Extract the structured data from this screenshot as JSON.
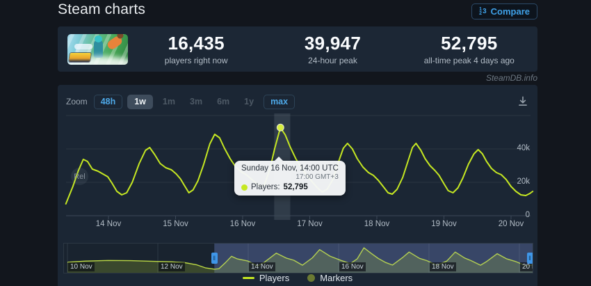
{
  "header": {
    "title": "Steam charts",
    "compare_label": "Compare"
  },
  "stats": {
    "items": [
      {
        "value": "16,435",
        "caption": "players right now"
      },
      {
        "value": "39,947",
        "caption": "24-hour peak"
      },
      {
        "value": "52,795",
        "caption": "all-time peak 4 days ago"
      }
    ]
  },
  "watermark": "SteamDB.info",
  "toolbar": {
    "zoom_label": "Zoom",
    "buttons": [
      {
        "label": "48h",
        "state": "enabled"
      },
      {
        "label": "1w",
        "state": "selected"
      },
      {
        "label": "1m",
        "state": "disabled"
      },
      {
        "label": "3m",
        "state": "disabled"
      },
      {
        "label": "6m",
        "state": "disabled"
      },
      {
        "label": "1y",
        "state": "disabled"
      },
      {
        "label": "max",
        "state": "enabled"
      }
    ]
  },
  "tooltip": {
    "title": "Sunday 16 Nov, 14:00 UTC",
    "subtitle": "17:00 GMT+3",
    "series_label": "Players:",
    "value": "52,795"
  },
  "legend": {
    "items": [
      {
        "label": "Players",
        "swatch": "line"
      },
      {
        "label": "Markers",
        "swatch": "circle"
      }
    ]
  },
  "chart_data": {
    "type": "line",
    "series_name": "Players",
    "series_color": "#c6e822",
    "ylim": [
      0,
      62000
    ],
    "y_ticks": [
      {
        "v": 0,
        "label": "0"
      },
      {
        "v": 20000,
        "label": "20k"
      },
      {
        "v": 40000,
        "label": "40k"
      },
      {
        "v": 60000,
        "label": ""
      }
    ],
    "x_ticks": [
      {
        "t": 1,
        "label": "14 Nov"
      },
      {
        "t": 2,
        "label": "15 Nov"
      },
      {
        "t": 3,
        "label": "16 Nov"
      },
      {
        "t": 4,
        "label": "17 Nov"
      },
      {
        "t": 5,
        "label": "18 Nov"
      },
      {
        "t": 6,
        "label": "19 Nov"
      },
      {
        "t": 7,
        "label": "20 Nov"
      }
    ],
    "hover_band_t": [
      3.47,
      3.71
    ],
    "marker_point": {
      "t": 3.563,
      "v": 52795
    },
    "release_marker": {
      "label": "Rel",
      "t": 0.6,
      "v": 40000
    },
    "points": [
      [
        0.365,
        7100
      ],
      [
        0.469,
        17500
      ],
      [
        0.552,
        27100
      ],
      [
        0.625,
        33750
      ],
      [
        0.688,
        32500
      ],
      [
        0.76,
        27900
      ],
      [
        0.844,
        26650
      ],
      [
        0.917,
        25000
      ],
      [
        0.99,
        23350
      ],
      [
        1.052,
        19600
      ],
      [
        1.125,
        14600
      ],
      [
        1.198,
        12500
      ],
      [
        1.271,
        13750
      ],
      [
        1.354,
        20000
      ],
      [
        1.458,
        31250
      ],
      [
        1.552,
        39150
      ],
      [
        1.615,
        40850
      ],
      [
        1.688,
        36650
      ],
      [
        1.771,
        31250
      ],
      [
        1.854,
        28750
      ],
      [
        1.938,
        27500
      ],
      [
        2.01,
        25000
      ],
      [
        2.073,
        22100
      ],
      [
        2.135,
        17900
      ],
      [
        2.198,
        13750
      ],
      [
        2.26,
        15400
      ],
      [
        2.333,
        20850
      ],
      [
        2.417,
        30400
      ],
      [
        2.51,
        42900
      ],
      [
        2.583,
        48750
      ],
      [
        2.656,
        46650
      ],
      [
        2.729,
        40400
      ],
      [
        2.813,
        34150
      ],
      [
        2.896,
        29150
      ],
      [
        2.979,
        26250
      ],
      [
        3.052,
        24600
      ],
      [
        3.125,
        22100
      ],
      [
        3.198,
        19600
      ],
      [
        3.26,
        17500
      ],
      [
        3.323,
        18350
      ],
      [
        3.406,
        27900
      ],
      [
        3.479,
        40400
      ],
      [
        3.563,
        52795
      ],
      [
        3.635,
        48350
      ],
      [
        3.708,
        41250
      ],
      [
        3.792,
        34150
      ],
      [
        3.875,
        28750
      ],
      [
        3.958,
        24150
      ],
      [
        4.042,
        20000
      ],
      [
        4.115,
        16650
      ],
      [
        4.188,
        14150
      ],
      [
        4.26,
        15850
      ],
      [
        4.344,
        21650
      ],
      [
        4.427,
        32100
      ],
      [
        4.5,
        40400
      ],
      [
        4.563,
        43350
      ],
      [
        4.635,
        40000
      ],
      [
        4.708,
        34150
      ],
      [
        4.792,
        29150
      ],
      [
        4.875,
        25850
      ],
      [
        4.948,
        24150
      ],
      [
        5.021,
        21250
      ],
      [
        5.094,
        17500
      ],
      [
        5.167,
        13750
      ],
      [
        5.229,
        12900
      ],
      [
        5.302,
        15850
      ],
      [
        5.385,
        22900
      ],
      [
        5.469,
        33350
      ],
      [
        5.531,
        40850
      ],
      [
        5.583,
        43350
      ],
      [
        5.656,
        39150
      ],
      [
        5.719,
        34150
      ],
      [
        5.792,
        30000
      ],
      [
        5.865,
        27100
      ],
      [
        5.927,
        24150
      ],
      [
        6.0,
        19150
      ],
      [
        6.063,
        15000
      ],
      [
        6.135,
        13750
      ],
      [
        6.208,
        16650
      ],
      [
        6.281,
        22500
      ],
      [
        6.365,
        30850
      ],
      [
        6.448,
        37100
      ],
      [
        6.51,
        39600
      ],
      [
        6.573,
        37100
      ],
      [
        6.635,
        32500
      ],
      [
        6.708,
        28350
      ],
      [
        6.781,
        25850
      ],
      [
        6.854,
        24600
      ],
      [
        6.927,
        21650
      ],
      [
        7.0,
        17500
      ],
      [
        7.073,
        14600
      ],
      [
        7.146,
        12500
      ],
      [
        7.219,
        12100
      ],
      [
        7.281,
        13350
      ],
      [
        7.323,
        14600
      ]
    ],
    "navigator": {
      "range": [
        -0.08,
        10.29
      ],
      "selection": [
        3.25,
        10.29
      ],
      "x_ticks": [
        {
          "t": 0,
          "label": "10 Nov"
        },
        {
          "t": 2,
          "label": "12 Nov"
        },
        {
          "t": 4,
          "label": "14 Nov"
        },
        {
          "t": 6,
          "label": "16 Nov"
        },
        {
          "t": 8,
          "label": "18 Nov"
        },
        {
          "t": 10,
          "label": "20 Nov"
        }
      ],
      "points": [
        [
          0,
          20500
        ],
        [
          0.4,
          23000
        ],
        [
          0.9,
          24500
        ],
        [
          1.4,
          24000
        ],
        [
          1.9,
          22500
        ],
        [
          2.3,
          21500
        ],
        [
          2.6,
          19500
        ],
        [
          2.85,
          15000
        ],
        [
          3.05,
          8000
        ],
        [
          3.25,
          5000
        ],
        [
          3.35,
          6000
        ],
        [
          3.5,
          20000
        ],
        [
          3.63,
          33800
        ],
        [
          3.76,
          27900
        ],
        [
          3.99,
          23300
        ],
        [
          4.2,
          12500
        ],
        [
          4.35,
          20000
        ],
        [
          4.62,
          40800
        ],
        [
          4.85,
          29500
        ],
        [
          5.01,
          25000
        ],
        [
          5.2,
          13800
        ],
        [
          5.42,
          30400
        ],
        [
          5.58,
          48800
        ],
        [
          5.81,
          34200
        ],
        [
          6.05,
          24600
        ],
        [
          6.26,
          17500
        ],
        [
          6.41,
          27900
        ],
        [
          6.56,
          52800
        ],
        [
          6.71,
          41200
        ],
        [
          6.88,
          28800
        ],
        [
          7.04,
          20000
        ],
        [
          7.19,
          14200
        ],
        [
          7.43,
          32100
        ],
        [
          7.56,
          43300
        ],
        [
          7.79,
          29200
        ],
        [
          7.95,
          24200
        ],
        [
          8.17,
          13800
        ],
        [
          8.39,
          22900
        ],
        [
          8.58,
          43300
        ],
        [
          8.79,
          30000
        ],
        [
          8.93,
          24200
        ],
        [
          9.14,
          13800
        ],
        [
          9.28,
          22500
        ],
        [
          9.51,
          39600
        ],
        [
          9.71,
          28300
        ],
        [
          9.93,
          21700
        ],
        [
          10.15,
          12500
        ],
        [
          10.3,
          14600
        ]
      ]
    }
  }
}
